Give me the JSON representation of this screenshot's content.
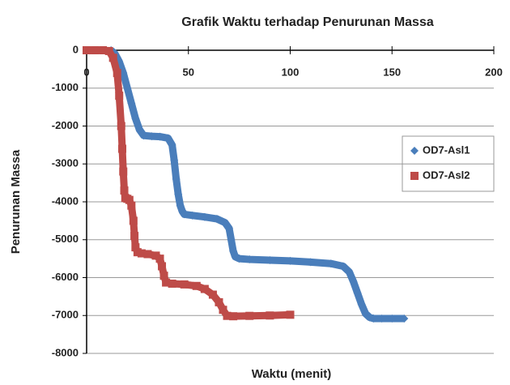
{
  "chart_data": {
    "type": "scatter",
    "title": "Grafik Waktu terhadap Penurunan Massa",
    "x_label": "Waktu (menit)",
    "y_label": "Penurunan Massa",
    "xlim": [
      0,
      200
    ],
    "xticks": [
      0,
      50,
      100,
      150,
      200
    ],
    "ylim": [
      -8000,
      0
    ],
    "yticks": [
      0,
      -1000,
      -2000,
      -3000,
      -4000,
      -5000,
      -6000,
      -7000,
      -8000
    ],
    "grid": true,
    "legend": "right",
    "series": [
      {
        "name": "OD7-Asl1",
        "color": "#4a7ebb",
        "marker": "diamond",
        "x": [
          12,
          14,
          16,
          18,
          20,
          22,
          24,
          26,
          28,
          32,
          36,
          40,
          42,
          43,
          44,
          45,
          46,
          47,
          48,
          52,
          58,
          64,
          68,
          70,
          71,
          72,
          73,
          75,
          80,
          90,
          100,
          110,
          120,
          126,
          129,
          131,
          133,
          135,
          137,
          139,
          141,
          145,
          150,
          156
        ],
        "y": [
          0,
          -100,
          -300,
          -600,
          -1000,
          -1400,
          -1800,
          -2100,
          -2250,
          -2270,
          -2280,
          -2320,
          -2500,
          -2900,
          -3400,
          -3800,
          -4100,
          -4250,
          -4330,
          -4360,
          -4400,
          -4450,
          -4550,
          -4700,
          -5000,
          -5300,
          -5450,
          -5500,
          -5520,
          -5540,
          -5560,
          -5590,
          -5630,
          -5700,
          -5850,
          -6100,
          -6400,
          -6700,
          -6950,
          -7050,
          -7080,
          -7080,
          -7080,
          -7080
        ]
      },
      {
        "name": "OD7-Asl2",
        "color": "#be4b48",
        "marker": "square",
        "x": [
          0,
          4,
          8,
          11,
          13,
          15,
          16,
          17,
          17.5,
          18,
          18.5,
          19,
          20,
          21,
          22,
          23,
          23.5,
          24,
          25,
          27,
          30,
          34,
          36,
          37,
          38,
          39,
          42,
          48,
          54,
          58,
          62,
          65,
          67,
          69,
          72,
          80,
          90,
          100
        ],
        "y": [
          0,
          0,
          0,
          -20,
          -200,
          -600,
          -1200,
          -2000,
          -2600,
          -3200,
          -3700,
          -3900,
          -3920,
          -3950,
          -4100,
          -4500,
          -4900,
          -5200,
          -5330,
          -5360,
          -5380,
          -5420,
          -5500,
          -5700,
          -5950,
          -6130,
          -6160,
          -6180,
          -6220,
          -6300,
          -6450,
          -6650,
          -6850,
          -7010,
          -7020,
          -7010,
          -7000,
          -6980
        ]
      }
    ]
  }
}
